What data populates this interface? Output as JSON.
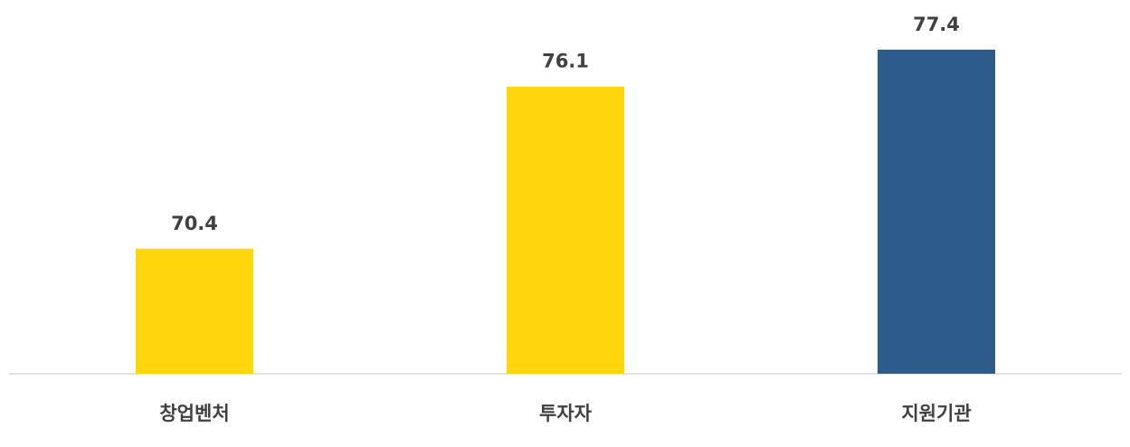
{
  "chart_data": {
    "type": "bar",
    "categories": [
      "창업벤처",
      "투자자",
      "지원기관"
    ],
    "values": [
      70.4,
      76.1,
      77.4
    ],
    "colors": [
      "#ffd60a",
      "#ffd60a",
      "#2e5c8a"
    ],
    "ylim": [
      66,
      78
    ]
  }
}
